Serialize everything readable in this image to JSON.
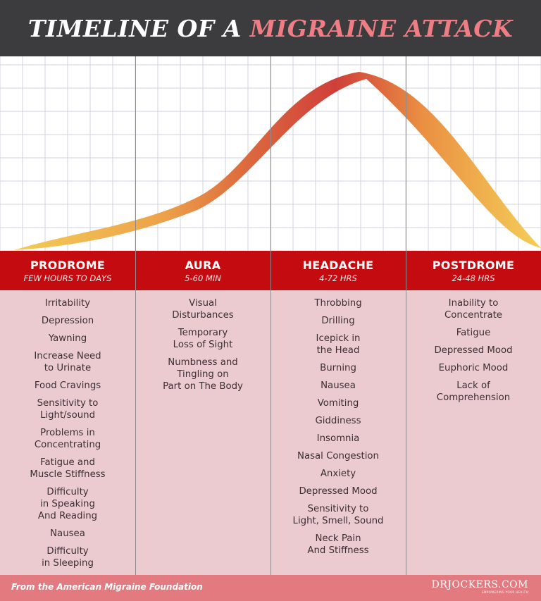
{
  "title": {
    "prefix": "TIMELINE OF A",
    "highlight": "MIGRAINE ATTACK"
  },
  "colors": {
    "title_bar": "#3c3b3d",
    "highlight": "#ee7d84",
    "band": "#c30b10",
    "panel": "#eccbd0",
    "footer": "#e27a80",
    "curve_start": "#f4cf58",
    "curve_peak": "#cf3f3a"
  },
  "phases": [
    {
      "name": "PRODROME",
      "duration": "FEW HOURS TO DAYS",
      "symptoms": [
        "Irritability",
        "Depression",
        "Yawning",
        "Increase Need\nto Urinate",
        "Food Cravings",
        "Sensitivity to\nLight/sound",
        "Problems in\nConcentrating",
        "Fatigue and\nMuscle Stiffness",
        "Difficulty\nin Speaking\nAnd Reading",
        "Nausea",
        "Difficulty\nin Sleeping"
      ]
    },
    {
      "name": "AURA",
      "duration": "5-60 MIN",
      "symptoms": [
        "Visual\nDisturbances",
        "Temporary\nLoss of Sight",
        "Numbness and\nTingling on\nPart on The Body"
      ]
    },
    {
      "name": "HEADACHE",
      "duration": "4-72 HRS",
      "symptoms": [
        "Throbbing",
        "Drilling",
        "Icepick in\nthe Head",
        "Burning",
        "Nausea",
        "Vomiting",
        "Giddiness",
        "Insomnia",
        "Nasal Congestion",
        "Anxiety",
        "Depressed Mood",
        "Sensitivity to\nLight, Smell, Sound",
        "Neck Pain\nAnd Stiffness"
      ]
    },
    {
      "name": "POSTDROME",
      "duration": "24-48 HRS",
      "symptoms": [
        "Inability to\nConcentrate",
        "Fatigue",
        "Depressed Mood",
        "Euphoric Mood",
        "Lack of\nComprehension"
      ]
    }
  ],
  "footer": {
    "credit": "From the American Migraine Foundation",
    "brand": "DRJOCKERS.COM",
    "tagline": "EMPOWERING YOUR HEALTH"
  }
}
